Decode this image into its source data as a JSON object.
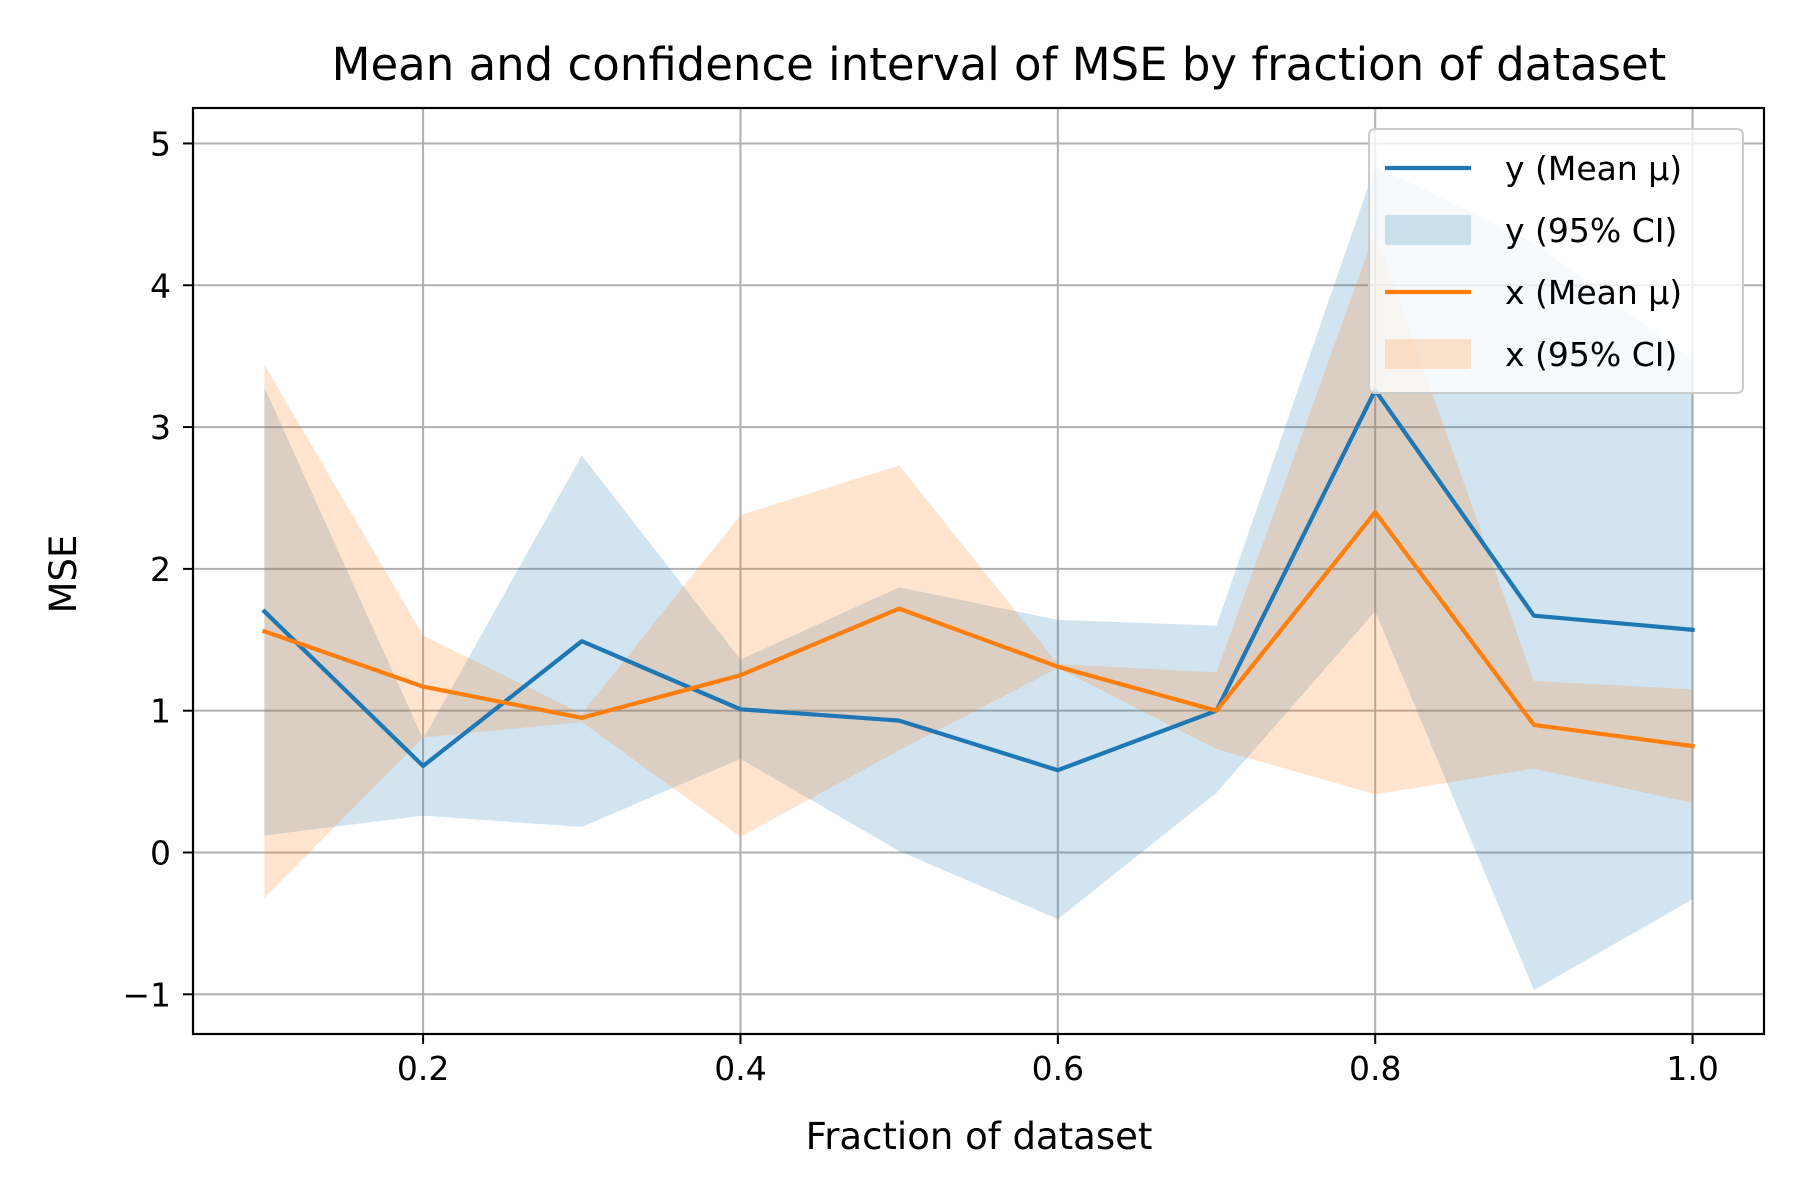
{
  "chart_data": {
    "type": "line",
    "title": "Mean and confidence interval of MSE by fraction of dataset",
    "xlabel": "Fraction of dataset",
    "ylabel": "MSE",
    "xlim": [
      0.055,
      1.045
    ],
    "ylim": [
      -1.28,
      5.25
    ],
    "xticks": [
      0.2,
      0.4,
      0.6,
      0.8,
      1.0
    ],
    "xtick_labels": [
      "0.2",
      "0.4",
      "0.6",
      "0.8",
      "1.0"
    ],
    "yticks": [
      -1,
      0,
      1,
      2,
      3,
      4,
      5
    ],
    "ytick_labels": [
      "−1",
      "0",
      "1",
      "2",
      "3",
      "4",
      "5"
    ],
    "grid": true,
    "legend_position": "top-right",
    "x": [
      0.1,
      0.2,
      0.3,
      0.4,
      0.5,
      0.6,
      0.7,
      0.8,
      0.9,
      1.0
    ],
    "series": [
      {
        "name": "y (Mean μ)",
        "ci_name": "y (95% CI)",
        "color": "#1f77b4",
        "mean": [
          1.7,
          0.61,
          1.49,
          1.01,
          0.93,
          0.58,
          1.0,
          3.26,
          1.67,
          1.57
        ],
        "lower": [
          0.12,
          0.26,
          0.18,
          0.66,
          0.01,
          -0.47,
          0.42,
          1.7,
          -0.97,
          -0.33
        ],
        "upper": [
          3.28,
          0.8,
          2.8,
          1.36,
          1.87,
          1.64,
          1.6,
          4.84,
          4.3,
          3.47
        ]
      },
      {
        "name": "x (Mean μ)",
        "ci_name": "x (95% CI)",
        "color": "#ff7f0e",
        "mean": [
          1.56,
          1.17,
          0.95,
          1.25,
          1.72,
          1.31,
          1.0,
          2.4,
          0.9,
          0.75
        ],
        "lower": [
          -0.32,
          0.81,
          0.92,
          0.11,
          0.72,
          1.3,
          0.73,
          0.41,
          0.59,
          0.35
        ],
        "upper": [
          3.44,
          1.53,
          0.98,
          2.38,
          2.73,
          1.33,
          1.27,
          4.38,
          1.21,
          1.15
        ]
      }
    ]
  }
}
